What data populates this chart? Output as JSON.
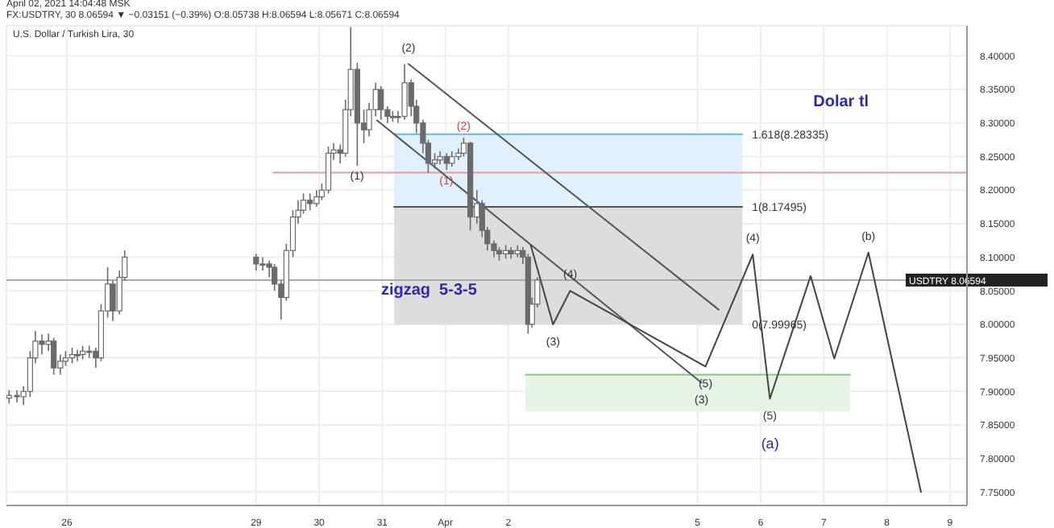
{
  "chart_data": {
    "type": "candlestick",
    "title": "U.S. Dollar / Turkish Lira, 30",
    "subtitle": "FX:USDTRY, 30 8.06594 ▼ −0.03151 (−0.39%) O:8.05738 H:8.06594 L:8.05671 C:8.06594",
    "x": [
      "2021-03-25T02:00",
      "2021-03-25T05:00",
      "2021-03-25T07:30",
      "2021-03-25T10:00",
      "2021-03-25T12:00",
      "2021-03-25T14:30",
      "2021-03-25T17:00",
      "2021-03-25T19:00",
      "2021-03-25T21:30",
      "2021-03-25T23:30",
      "2021-03-26T02:00",
      "2021-03-26T04:00",
      "2021-03-26T06:00",
      "2021-03-26T08:30",
      "2021-03-26T11:00",
      "2021-03-26T13:00",
      "2021-03-26T15:30",
      "2021-03-26T17:30",
      "2021-03-26T20:00",
      "2021-03-26T22:00",
      "2021-03-29T00:00",
      "2021-03-29T02:30",
      "2021-03-29T05:00",
      "2021-03-29T07:00",
      "2021-03-29T09:30",
      "2021-03-29T11:30",
      "2021-03-29T14:00",
      "2021-03-29T16:00",
      "2021-03-29T18:00",
      "2021-03-29T20:30",
      "2021-03-29T23:00",
      "2021-03-30T01:00",
      "2021-03-30T03:30",
      "2021-03-30T05:30",
      "2021-03-30T08:00",
      "2021-03-30T10:00",
      "2021-03-30T12:00",
      "2021-03-30T14:30",
      "2021-03-30T17:00",
      "2021-03-30T19:00",
      "2021-03-30T21:30",
      "2021-03-30T23:30",
      "2021-03-31T02:00",
      "2021-03-31T04:00",
      "2021-03-31T06:00",
      "2021-03-31T08:30",
      "2021-03-31T11:00",
      "2021-03-31T13:00",
      "2021-03-31T15:30",
      "2021-03-31T17:30",
      "2021-03-31T20:00",
      "2021-03-31T22:00",
      "2021-04-01T00:30",
      "2021-04-01T02:30",
      "2021-04-01T05:00",
      "2021-04-01T07:00",
      "2021-04-01T09:30",
      "2021-04-01T12:00",
      "2021-04-01T14:00",
      "2021-04-01T16:00",
      "2021-04-01T18:30",
      "2021-04-01T20:30",
      "2021-04-01T23:00",
      "2021-04-02T01:00",
      "2021-04-02T03:30",
      "2021-04-02T05:30",
      "2021-04-02T07:30",
      "2021-04-02T09:00",
      "2021-04-02T11:00"
    ],
    "ohlc": [
      [
        7.89,
        7.902,
        7.882,
        7.894
      ],
      [
        7.894,
        7.902,
        7.884,
        7.892
      ],
      [
        7.892,
        7.908,
        7.88,
        7.9
      ],
      [
        7.9,
        7.96,
        7.892,
        7.95
      ],
      [
        7.95,
        7.99,
        7.942,
        7.975
      ],
      [
        7.975,
        7.985,
        7.955,
        7.97
      ],
      [
        7.97,
        7.986,
        7.96,
        7.975
      ],
      [
        7.975,
        7.98,
        7.925,
        7.935
      ],
      [
        7.935,
        7.955,
        7.925,
        7.945
      ],
      [
        7.945,
        7.96,
        7.938,
        7.95
      ],
      [
        7.95,
        7.965,
        7.942,
        7.955
      ],
      [
        7.955,
        7.962,
        7.945,
        7.955
      ],
      [
        7.955,
        7.968,
        7.948,
        7.96
      ],
      [
        7.96,
        7.968,
        7.95,
        7.96
      ],
      [
        7.96,
        7.965,
        7.935,
        7.95
      ],
      [
        7.95,
        8.03,
        7.945,
        8.02
      ],
      [
        8.02,
        8.085,
        8.01,
        8.06
      ],
      [
        8.06,
        8.065,
        8.005,
        8.02
      ],
      [
        8.02,
        8.08,
        8.015,
        8.07
      ],
      [
        8.07,
        8.11,
        8.065,
        8.1
      ],
      [
        8.1,
        8.105,
        8.08,
        8.09
      ],
      [
        8.09,
        8.1,
        8.08,
        8.09
      ],
      [
        8.09,
        8.095,
        8.07,
        8.085
      ],
      [
        8.085,
        8.09,
        8.05,
        8.06
      ],
      [
        8.06,
        8.065,
        8.007,
        8.04
      ],
      [
        8.04,
        8.12,
        8.035,
        8.11
      ],
      [
        8.11,
        8.17,
        8.1,
        8.16
      ],
      [
        8.16,
        8.185,
        8.15,
        8.17
      ],
      [
        8.17,
        8.195,
        8.165,
        8.185
      ],
      [
        8.185,
        8.195,
        8.17,
        8.18
      ],
      [
        8.18,
        8.2,
        8.175,
        8.19
      ],
      [
        8.19,
        8.21,
        8.185,
        8.2
      ],
      [
        8.2,
        8.265,
        8.195,
        8.255
      ],
      [
        8.255,
        8.27,
        8.245,
        8.26
      ],
      [
        8.26,
        8.268,
        8.24,
        8.255
      ],
      [
        8.255,
        8.335,
        8.25,
        8.32
      ],
      [
        8.32,
        8.443,
        8.31,
        8.38
      ],
      [
        8.38,
        8.39,
        8.236,
        8.3
      ],
      [
        8.3,
        8.32,
        8.27,
        8.29
      ],
      [
        8.29,
        8.33,
        8.28,
        8.32
      ],
      [
        8.32,
        8.36,
        8.31,
        8.35
      ],
      [
        8.35,
        8.355,
        8.305,
        8.32
      ],
      [
        8.32,
        8.325,
        8.3,
        8.31
      ],
      [
        8.31,
        8.318,
        8.302,
        8.31
      ],
      [
        8.31,
        8.318,
        8.3,
        8.31
      ],
      [
        8.31,
        8.388,
        8.305,
        8.36
      ],
      [
        8.36,
        8.365,
        8.31,
        8.325
      ],
      [
        8.325,
        8.335,
        8.285,
        8.3
      ],
      [
        8.3,
        8.305,
        8.255,
        8.27
      ],
      [
        8.27,
        8.275,
        8.226,
        8.24
      ],
      [
        8.24,
        8.255,
        8.232,
        8.245
      ],
      [
        8.245,
        8.258,
        8.238,
        8.25
      ],
      [
        8.25,
        8.255,
        8.23,
        8.24
      ],
      [
        8.24,
        8.258,
        8.235,
        8.25
      ],
      [
        8.25,
        8.262,
        8.245,
        8.255
      ],
      [
        8.255,
        8.278,
        8.25,
        8.27
      ],
      [
        8.27,
        8.272,
        8.14,
        8.16
      ],
      [
        8.16,
        8.2,
        8.15,
        8.18
      ],
      [
        8.18,
        8.185,
        8.13,
        8.14
      ],
      [
        8.14,
        8.145,
        8.11,
        8.12
      ],
      [
        8.12,
        8.125,
        8.1,
        8.11
      ],
      [
        8.11,
        8.115,
        8.095,
        8.105
      ],
      [
        8.105,
        8.118,
        8.098,
        8.11
      ],
      [
        8.11,
        8.115,
        8.098,
        8.105
      ],
      [
        8.105,
        8.118,
        8.1,
        8.11
      ],
      [
        8.11,
        8.115,
        8.09,
        8.1
      ],
      [
        8.1,
        8.105,
        7.986,
        8
      ],
      [
        8,
        8.04,
        7.995,
        8.03
      ],
      [
        8.03,
        8.07,
        8.025,
        8.066
      ]
    ],
    "color": "#6b6b6b",
    "series": [
      {
        "type": "line",
        "color": "#64b5f6",
        "x": [
          "2021-03-31T04:30",
          "2021-04-05T17:00"
        ],
        "values": [
          8.28335,
          8.28335
        ],
        "lower": [
          8.17495,
          8.17495
        ],
        "upper": [
          8.28335,
          8.28335
        ]
      },
      {
        "type": "line",
        "color": "#555555",
        "x": [
          "2021-03-31T04:30",
          "2021-04-05T17:00"
        ],
        "values": [
          8.17495,
          8.17495
        ],
        "lower": [
          7.99965,
          7.99965
        ],
        "upper": [
          8.17495,
          8.17495
        ]
      },
      {
        "type": "line",
        "color": "#81c784",
        "x": [
          "2021-04-02T06:30",
          "2021-04-07T10:00"
        ],
        "values": [
          7.925,
          7.925
        ],
        "lower": [
          7.87,
          7.87
        ],
        "upper": [
          7.925,
          7.925
        ]
      },
      {
        "type": "line",
        "color": "#ef9a9a",
        "x": [
          "2021-03-29T06:30",
          "2021-04-09T06:30"
        ],
        "values": [
          8.226,
          8.226
        ]
      },
      {
        "type": "line",
        "color": "#555555",
        "x": [
          "2021-03-31T10:00",
          "2021-04-05T08:00"
        ],
        "values": [
          8.388,
          8.022
        ]
      },
      {
        "type": "line",
        "color": "#555555",
        "x": [
          "2021-03-30T22:00",
          "2021-04-05T01:30"
        ],
        "values": [
          8.304,
          7.913
        ]
      },
      {
        "type": "line",
        "color": "#444444",
        "x": [
          "2021-04-02T08:30",
          "2021-04-02T17:00",
          "2021-04-02T23:30",
          "2021-04-05T03:00",
          "2021-04-05T21:00",
          "2021-04-06T03:30",
          "2021-04-06T19:00",
          "2021-04-07T04:00",
          "2021-04-07T17:00",
          "2021-04-08T13:00"
        ],
        "values": [
          8.118,
          8.0,
          8.05,
          7.937,
          8.104,
          7.889,
          8.072,
          7.949,
          8.107,
          7.75
        ]
      }
    ],
    "ref_lines": [
      {
        "axis": "y",
        "value": 8.06594,
        "label": "USDTRY 8.06594",
        "color": "#aaaaaa"
      }
    ],
    "annotations": [
      "April 02, 2021 14:04:48 MSK",
      "zigzag  5-3-5",
      "Dolar tl",
      "(1)",
      "(2)",
      "(1)",
      "(a)",
      {
        "text": "(2)",
        "x": "2021-03-31T10:00",
        "y": 8.388
      },
      {
        "text": "(3)",
        "x": "2021-04-02T17:00",
        "y": 8.0
      },
      {
        "text": "(4)",
        "x": "2021-04-02T23:30",
        "y": 8.05
      },
      {
        "text": "(5)",
        "x": "2021-04-05T03:00",
        "y": 7.937
      },
      {
        "text": "(3)",
        "x": "2021-04-05T01:30",
        "y": 7.913
      },
      {
        "text": "(4)",
        "x": "2021-04-05T21:00",
        "y": 8.104
      },
      {
        "text": "(5)",
        "x": "2021-04-06T03:30",
        "y": 7.889
      },
      {
        "text": "(b)",
        "x": "2021-04-07T17:00",
        "y": 8.107
      },
      {
        "text": "1.618(8.28335)",
        "x": "2021-04-05T17:00",
        "y": 8.28335
      },
      {
        "text": "1(8.17495)",
        "x": "2021-04-05T17:00",
        "y": 8.17495
      },
      {
        "text": "0(7.99965)",
        "x": "2021-04-05T17:00",
        "y": 7.99965
      }
    ],
    "xlim": [
      "2021-03-25T01:00",
      "2021-04-09T06:30"
    ],
    "xticks": [
      {
        "value": "2021-03-26",
        "label": "26"
      },
      {
        "value": "2021-03-29",
        "label": "29"
      },
      {
        "value": "2021-03-30",
        "label": "30"
      },
      {
        "value": "2021-03-31",
        "label": "31"
      },
      {
        "value": "2021-04-01",
        "label": "Apr"
      },
      {
        "value": "2021-04-02",
        "label": "2"
      },
      {
        "value": "2021-04-05",
        "label": "5"
      },
      {
        "value": "2021-04-06",
        "label": "6"
      },
      {
        "value": "2021-04-07",
        "label": "7"
      },
      {
        "value": "2021-04-08",
        "label": "8"
      },
      {
        "value": "2021-04-09",
        "label": "9"
      }
    ],
    "ylim": [
      7.73,
      8.445
    ],
    "yticks": [
      {
        "value": 7.75,
        "label": "7.75000"
      },
      {
        "value": 7.8,
        "label": "7.80000"
      },
      {
        "value": 7.85,
        "label": "7.85000"
      },
      {
        "value": 7.9,
        "label": "7.90000"
      },
      {
        "value": 7.95,
        "label": "7.95000"
      },
      {
        "value": 8.0,
        "label": "8.00000"
      },
      {
        "value": 8.05,
        "label": "8.05000"
      },
      {
        "value": 8.1,
        "label": "8.10000"
      },
      {
        "value": 8.15,
        "label": "8.15000"
      },
      {
        "value": 8.2,
        "label": "8.20000"
      },
      {
        "value": 8.25,
        "label": "8.25000"
      },
      {
        "value": 8.3,
        "label": "8.30000"
      },
      {
        "value": 8.35,
        "label": "8.35000"
      },
      {
        "value": 8.4,
        "label": "8.40000"
      }
    ],
    "grid": true,
    "marker": "none",
    "line_style": "solid"
  }
}
